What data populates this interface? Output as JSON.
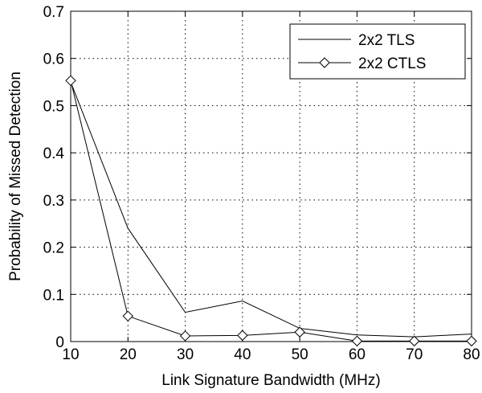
{
  "chart_data": {
    "type": "line",
    "title": "",
    "xlabel": "Link Signature Bandwidth (MHz)",
    "ylabel": "Probability of Missed Detection",
    "xlim": [
      10,
      80
    ],
    "ylim": [
      0,
      0.7
    ],
    "xticks": [
      10,
      20,
      30,
      40,
      50,
      60,
      70,
      80
    ],
    "yticks": [
      0,
      0.1,
      0.2,
      0.3,
      0.4,
      0.5,
      0.6,
      0.7
    ],
    "xtick_labels": [
      "10",
      "20",
      "30",
      "40",
      "50",
      "60",
      "70",
      "80"
    ],
    "ytick_labels": [
      "0",
      "0.1",
      "0.2",
      "0.3",
      "0.4",
      "0.5",
      "0.6",
      "0.7"
    ],
    "grid": true,
    "grid_style": "dotted",
    "legend_position": "top-right",
    "line_color": "#000000",
    "x": [
      10,
      20,
      30,
      40,
      50,
      60,
      70,
      80
    ],
    "series": [
      {
        "name": "2x2 TLS",
        "marker": "none",
        "values": [
          0.55,
          0.24,
          0.062,
          0.086,
          0.028,
          0.014,
          0.01,
          0.016
        ]
      },
      {
        "name": "2x2 CTLS",
        "marker": "diamond",
        "values": [
          0.553,
          0.054,
          0.012,
          0.013,
          0.02,
          0.001,
          0.001,
          0.001
        ]
      }
    ]
  }
}
